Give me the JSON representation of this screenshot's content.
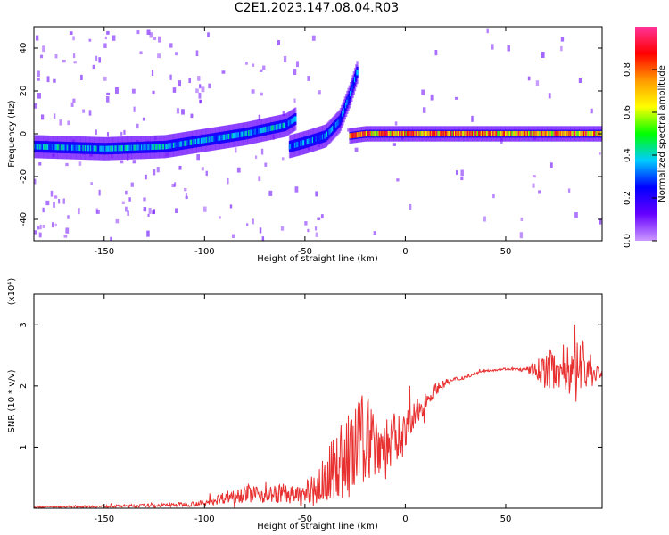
{
  "figure": {
    "title": "C2E1.2023.147.08.04.R03",
    "colors": {
      "snr_line": "#e83030",
      "axis": "#000000",
      "background": "#ffffff"
    }
  },
  "chart_data": [
    {
      "type": "heatmap",
      "xlabel": "Height of straight line (km)",
      "ylabel": "Frequency (Hz)",
      "xlim": [
        -185,
        98
      ],
      "ylim": [
        -50,
        50
      ],
      "x_ticks": [
        -150,
        -100,
        -50,
        0,
        50
      ],
      "y_ticks": [
        -40,
        -20,
        0,
        20,
        40
      ],
      "colorbar": {
        "label": "Normalized spectral amplitude",
        "range": [
          0.0,
          1.0
        ],
        "ticks": [
          "0.0",
          "0.2",
          "0.4",
          "0.6",
          "0.8"
        ],
        "colormap": [
          "#cc99ff",
          "#6600ff",
          "#0000ff",
          "#00ccff",
          "#00ff00",
          "#ffff00",
          "#ff9900",
          "#ff0000",
          "#ff3399"
        ]
      },
      "ridges": [
        {
          "x": [
            -185,
            -150,
            -120,
            -100,
            -80,
            -60,
            -55
          ],
          "y": [
            -6,
            -7,
            -6,
            -3,
            0,
            4,
            7
          ],
          "peak_amplitude": 0.45
        },
        {
          "x": [
            -58,
            -50,
            -40,
            -33,
            -28,
            -24
          ],
          "y": [
            -6,
            -4,
            -1,
            6,
            18,
            30
          ],
          "peak_amplitude": 0.4
        },
        {
          "x": [
            -28,
            -20,
            -10,
            0,
            50,
            98
          ],
          "y": [
            -1,
            0,
            0,
            0,
            0,
            0
          ],
          "peak_amplitude": 0.95
        }
      ]
    },
    {
      "type": "line",
      "xlabel": "Height of straight line (km)",
      "ylabel": "SNR (10 * v/v)",
      "y_scale_label": "(x10⁴)",
      "xlim": [
        -185,
        98
      ],
      "ylim": [
        0,
        3.5
      ],
      "x_ticks": [
        -150,
        -100,
        -50,
        0,
        50
      ],
      "y_ticks": [
        1,
        2,
        3
      ],
      "series": [
        {
          "color": "#e83030",
          "x": [
            -185,
            -150,
            -120,
            -100,
            -90,
            -80,
            -70,
            -60,
            -55,
            -50,
            -45,
            -40,
            -35,
            -30,
            -25,
            -20,
            -15,
            -10,
            -5,
            0,
            5,
            10,
            15,
            20,
            25,
            30,
            35,
            40,
            50,
            60,
            70,
            75,
            80,
            85,
            88,
            90,
            95,
            98
          ],
          "y": [
            0.02,
            0.03,
            0.05,
            0.08,
            0.18,
            0.25,
            0.22,
            0.25,
            0.2,
            0.22,
            0.3,
            0.45,
            0.7,
            0.8,
            0.9,
            1.2,
            1.1,
            1.0,
            1.1,
            1.25,
            1.5,
            1.75,
            1.95,
            2.05,
            2.1,
            2.15,
            2.2,
            2.25,
            2.28,
            2.26,
            2.25,
            2.3,
            2.3,
            2.2,
            2.4,
            2.3,
            2.2,
            2.22
          ],
          "noise_amplitude": [
            0.01,
            0.02,
            0.03,
            0.05,
            0.1,
            0.15,
            0.14,
            0.16,
            0.15,
            0.2,
            0.3,
            0.4,
            0.55,
            0.7,
            0.8,
            0.75,
            0.65,
            0.55,
            0.45,
            0.35,
            0.25,
            0.15,
            0.1,
            0.06,
            0.05,
            0.03,
            0.02,
            0.02,
            0.02,
            0.03,
            0.3,
            0.35,
            0.4,
            0.5,
            0.6,
            0.45,
            0.15,
            0.1
          ]
        }
      ]
    }
  ]
}
